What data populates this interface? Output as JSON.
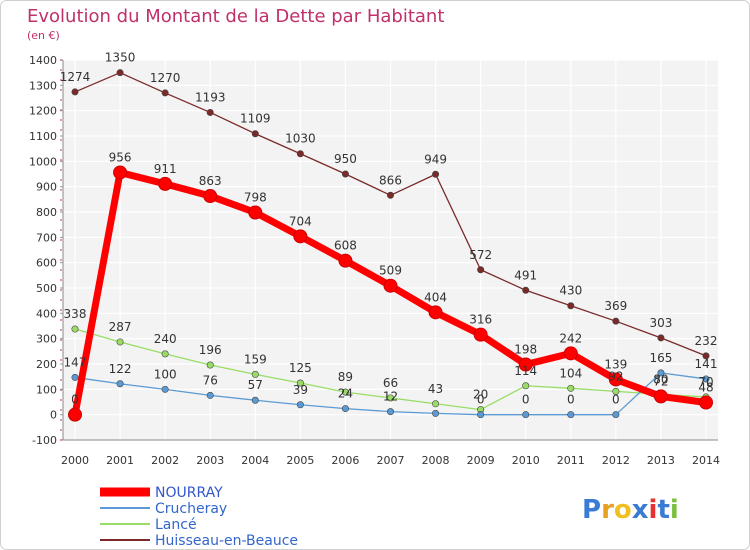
{
  "chart_data": {
    "type": "line",
    "title": "Evolution du Montant de la Dette par Habitant",
    "subtitle": "(en €)",
    "x": [
      "2000",
      "2001",
      "2002",
      "2003",
      "2004",
      "2005",
      "2006",
      "2007",
      "2008",
      "2009",
      "2010",
      "2011",
      "2012",
      "2013",
      "2014"
    ],
    "ylim": [
      -100,
      1400
    ],
    "yticks": [
      -100,
      0,
      100,
      200,
      300,
      400,
      500,
      600,
      700,
      800,
      900,
      1000,
      1100,
      1200,
      1300,
      1400
    ],
    "grid": true,
    "legend_position": "bottom-left",
    "series": [
      {
        "name": "NOURRAY",
        "color": "#ff0000",
        "values": [
          0,
          956,
          911,
          863,
          798,
          704,
          608,
          509,
          404,
          316,
          198,
          242,
          139,
          72,
          48
        ],
        "labels": [
          "0",
          "956",
          "911",
          "863",
          "798",
          "704",
          "608",
          "509",
          "404",
          "316",
          "198",
          "242",
          "139",
          "72",
          "48"
        ]
      },
      {
        "name": "Crucheray",
        "color": "#5b9bd5",
        "values": [
          147,
          122,
          100,
          76,
          57,
          39,
          24,
          12,
          5,
          0,
          0,
          0,
          0,
          165,
          141
        ],
        "labels": [
          "147",
          "122",
          "100",
          "76",
          "57",
          "39",
          "24",
          "12",
          "",
          "0",
          "0",
          "0",
          "0",
          "165",
          "141"
        ]
      },
      {
        "name": "Lancé",
        "color": "#99dd66",
        "values": [
          338,
          287,
          240,
          196,
          159,
          125,
          89,
          66,
          43,
          20,
          114,
          104,
          92,
          80,
          70
        ],
        "labels": [
          "338",
          "287",
          "240",
          "196",
          "159",
          "125",
          "89",
          "66",
          "43",
          "20",
          "114",
          "104",
          "92",
          "80",
          "70"
        ]
      },
      {
        "name": "Huisseau-en-Beauce",
        "color": "#7b2a2a",
        "values": [
          1274,
          1350,
          1270,
          1193,
          1109,
          1030,
          950,
          866,
          949,
          572,
          491,
          430,
          369,
          303,
          232
        ],
        "labels": [
          "1274",
          "1350",
          "1270",
          "1193",
          "1109",
          "1030",
          "950",
          "866",
          "949",
          "572",
          "491",
          "430",
          "369",
          "303",
          "232"
        ]
      }
    ]
  },
  "logo": {
    "text": "Proxiti"
  }
}
